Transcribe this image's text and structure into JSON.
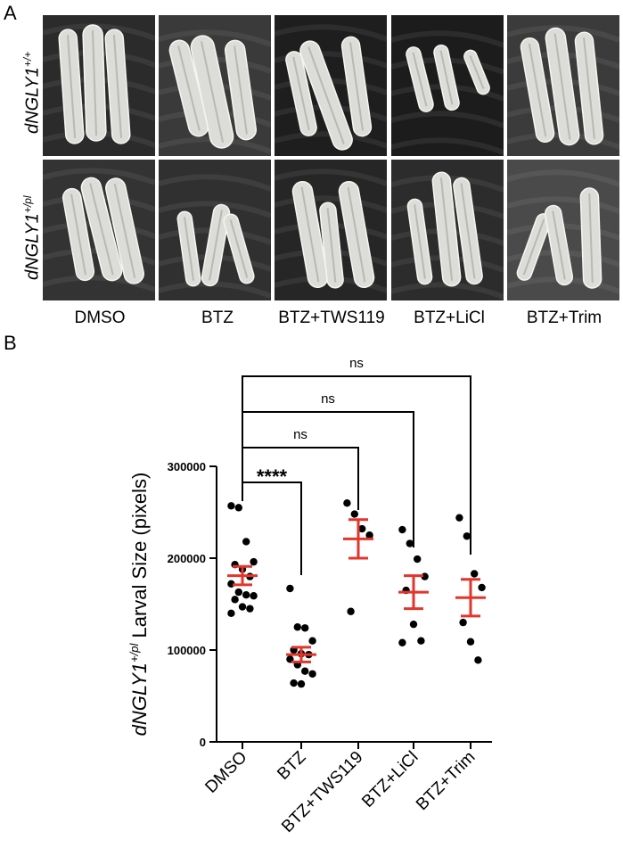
{
  "panel_a": {
    "letter": "A",
    "rows": [
      {
        "label_main": "dNGLY1",
        "label_sup": "+/+"
      },
      {
        "label_main": "dNGLY1",
        "label_sup": "+/pl"
      }
    ],
    "columns": [
      "DMSO",
      "BTZ",
      "BTZ+TWS119",
      "BTZ+LiCl",
      "BTZ+Trim"
    ]
  },
  "panel_b": {
    "letter": "B"
  },
  "chart_data": {
    "type": "scatter",
    "ylabel_main": "dNGLY1",
    "ylabel_sup": "+/pl",
    "ylabel_rest": " Larval Size (pixels)",
    "ylim": [
      0,
      300000
    ],
    "yticks": [
      0,
      100000,
      200000,
      300000
    ],
    "ytick_labels": [
      "0",
      "100000",
      "200000",
      "300000"
    ],
    "categories": [
      "DMSO",
      "BTZ",
      "BTZ+TWS119",
      "BTZ+LiCl",
      "BTZ+Trim"
    ],
    "point_color": "#000000",
    "error_color": "#e2352b",
    "groups": [
      {
        "name": "DMSO",
        "mean": 181000,
        "sem": 10000,
        "points": [
          257000,
          255000,
          218000,
          196000,
          193000,
          188000,
          180000,
          172000,
          163000,
          160000,
          159000,
          155000,
          147000,
          145000,
          140000
        ]
      },
      {
        "name": "BTZ",
        "mean": 95000,
        "sem": 8000,
        "points": [
          167000,
          125000,
          124000,
          110000,
          100000,
          96000,
          95000,
          90000,
          84000,
          77000,
          74000,
          64000,
          63000
        ]
      },
      {
        "name": "BTZ+TWS119",
        "mean": 221000,
        "sem": 21000,
        "points": [
          260000,
          248000,
          232000,
          225000,
          142000
        ]
      },
      {
        "name": "BTZ+LiCl",
        "mean": 163000,
        "sem": 18000,
        "points": [
          231000,
          216000,
          199000,
          180000,
          165000,
          128000,
          110000,
          108000
        ]
      },
      {
        "name": "BTZ+Trim",
        "mean": 157000,
        "sem": 20000,
        "points": [
          244000,
          224000,
          183000,
          168000,
          130000,
          109000,
          89000
        ]
      }
    ],
    "comparisons": [
      {
        "from": "DMSO",
        "to": "BTZ",
        "label": "****"
      },
      {
        "from": "DMSO",
        "to": "BTZ+TWS119",
        "label": "ns"
      },
      {
        "from": "DMSO",
        "to": "BTZ+LiCl",
        "label": "ns"
      },
      {
        "from": "DMSO",
        "to": "BTZ+Trim",
        "label": "ns"
      }
    ]
  }
}
